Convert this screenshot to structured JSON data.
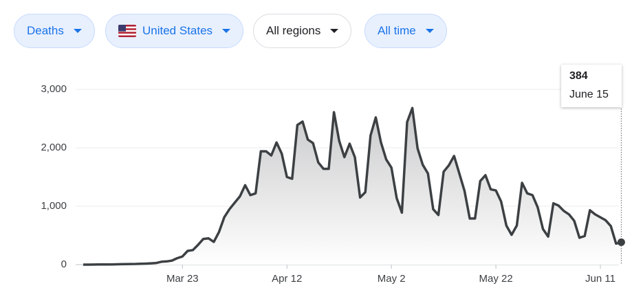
{
  "filters": [
    {
      "label": "Deaths",
      "selected": true,
      "flag": false
    },
    {
      "label": "United States",
      "selected": true,
      "flag": true
    },
    {
      "label": "All regions",
      "selected": false,
      "flag": false
    },
    {
      "label": "All time",
      "selected": true,
      "flag": false
    }
  ],
  "chart_data": {
    "type": "area",
    "categories": [
      null,
      null,
      null,
      null,
      null,
      null,
      null,
      null,
      null,
      null,
      null,
      null,
      null,
      null,
      null,
      null,
      null,
      null,
      null,
      "Mar 23",
      null,
      null,
      null,
      null,
      null,
      null,
      null,
      null,
      null,
      null,
      null,
      null,
      null,
      null,
      null,
      null,
      null,
      null,
      null,
      "Apr 12",
      null,
      null,
      null,
      null,
      null,
      null,
      null,
      null,
      null,
      null,
      null,
      null,
      null,
      null,
      null,
      null,
      null,
      null,
      null,
      "May 2",
      null,
      null,
      null,
      null,
      null,
      null,
      null,
      null,
      null,
      null,
      null,
      null,
      null,
      null,
      null,
      null,
      null,
      null,
      null,
      "May 22",
      null,
      null,
      null,
      null,
      null,
      null,
      null,
      null,
      null,
      null,
      null,
      null,
      null,
      null,
      null,
      null,
      null,
      null,
      null,
      "Jun 11",
      null,
      null,
      null,
      null
    ],
    "series": [
      {
        "name": "Deaths",
        "color": "#3c4043",
        "values": [
          0,
          0,
          1,
          2,
          3,
          4,
          5,
          7,
          8,
          10,
          12,
          15,
          18,
          22,
          28,
          50,
          55,
          70,
          110,
          140,
          235,
          250,
          340,
          440,
          450,
          390,
          560,
          810,
          950,
          1060,
          1170,
          1360,
          1190,
          1220,
          1940,
          1940,
          1870,
          2090,
          1900,
          1500,
          1470,
          2390,
          2450,
          2140,
          2080,
          1750,
          1640,
          1640,
          2610,
          2120,
          1840,
          2070,
          1840,
          1150,
          1240,
          2210,
          2520,
          2090,
          1800,
          1660,
          1140,
          890,
          2440,
          2680,
          1990,
          1710,
          1560,
          950,
          850,
          1590,
          1700,
          1860,
          1560,
          1260,
          790,
          790,
          1430,
          1530,
          1290,
          1270,
          1080,
          670,
          510,
          670,
          1400,
          1220,
          1190,
          980,
          610,
          480,
          1050,
          1010,
          920,
          860,
          750,
          460,
          490,
          930,
          860,
          810,
          760,
          660,
          360,
          384
        ]
      }
    ],
    "ylim": [
      0,
      3000
    ],
    "yticks": [
      0,
      {
        "value": 1000,
        "label": "1,000"
      },
      {
        "value": 2000,
        "label": "2,000"
      },
      {
        "value": 3000,
        "label": "3,000"
      }
    ],
    "grid": true,
    "tooltip_label": "June 15"
  }
}
